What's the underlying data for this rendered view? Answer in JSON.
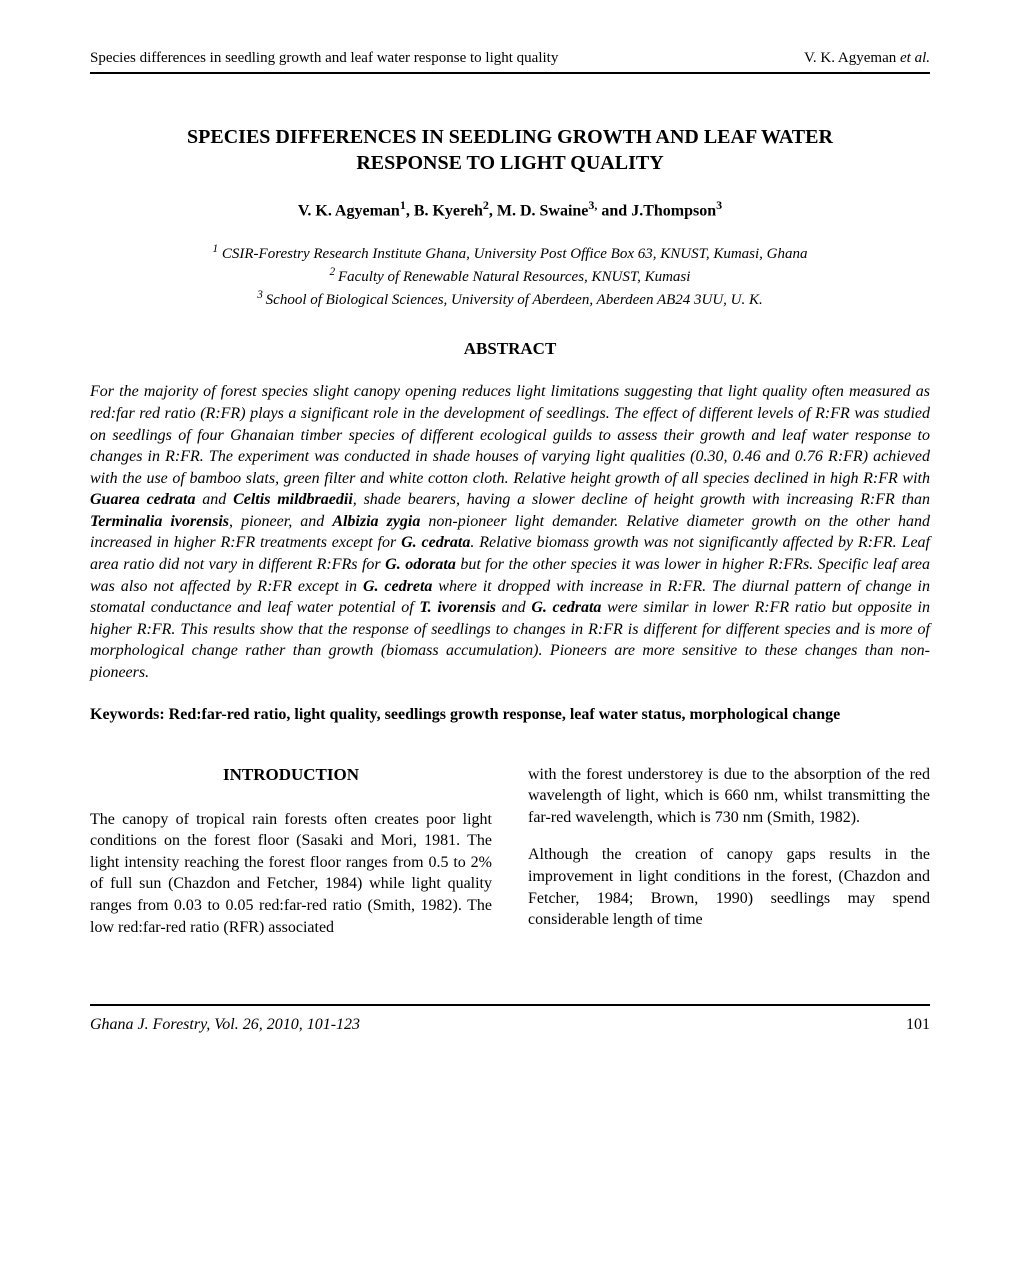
{
  "header": {
    "running_title": "Species differences in seedling growth and leaf water response to light quality",
    "author_short": "V. K. Agyeman",
    "etal": " et al."
  },
  "title_line1": "SPECIES DIFFERENCES IN SEEDLING GROWTH AND LEAF WATER",
  "title_line2": "RESPONSE TO LIGHT QUALITY",
  "authors": {
    "a1": "V. K. Agyeman",
    "s1": "1",
    "sep1": ", ",
    "a2": "B. Kyereh",
    "s2": "2",
    "sep2": ", ",
    "a3": "M. D. Swaine",
    "s3": "3,",
    "sep3": " and ",
    "a4": "J.Thompson",
    "s4": "3"
  },
  "affiliations": {
    "s1": "1",
    "t1": " CSIR-Forestry Research Institute Ghana, University Post Office Box 63, KNUST, Kumasi, Ghana",
    "s2": "2 ",
    "t2": "Faculty of Renewable Natural Resources, KNUST, Kumasi",
    "s3": "3 ",
    "t3": "School of Biological Sciences, University of Aberdeen, Aberdeen AB24 3UU, U. K."
  },
  "abstract_heading": "ABSTRACT",
  "abstract": {
    "p1a": "For the majority of forest species slight canopy opening reduces light limitations suggesting that light quality often measured as red:far red ratio (R:FR) plays a significant role in the development of seedlings. The effect of different levels of R:FR was studied on seedlings of four Ghanaian timber species of different ecological guilds to assess their growth and leaf water response to changes in R:FR. The experiment was conducted in shade houses of varying light qualities (0.30, 0.46 and 0.76 R:FR) achieved with the use of bamboo slats, green filter and white cotton cloth. Relative height growth of all species declined in high R:FR with ",
    "b1": "Guarea cedrata",
    "p1b": " and ",
    "b2": "Celtis mildbraedii",
    "p1c": ", shade bearers, having a slower decline of height growth with increasing R:FR than ",
    "b3": "Terminalia ivorensis",
    "p1d": ", pioneer, and ",
    "b4": "Albizia zygia",
    "p1e": " non-pioneer light demander. Relative diameter growth on the other hand increased in higher R:FR treatments except for ",
    "b5": "G. cedrata",
    "p1f": ". Relative biomass growth was not significantly affected by R:FR. Leaf area ratio did not vary in different R:FRs for ",
    "b6": "G. odorata",
    "p1g": " but for the other species it was lower in higher R:FRs. Specific leaf area was also not affected by R:FR except in ",
    "b7": "G. cedreta",
    "p1h": " where it dropped with increase in R:FR. The diurnal pattern of change in stomatal conductance and leaf water potential of ",
    "b8": "T. ivorensis",
    "p1i": " and ",
    "b9": "G. cedrata",
    "p1j": " were similar in lower R:FR ratio but opposite in higher R:FR. This results show that the response of seedlings to changes in R:FR is different for different species and is more of morphological change rather than growth (biomass accumulation). Pioneers are more sensitive to these changes than non-pioneers."
  },
  "keywords": "Keywords: Red:far-red ratio, light quality, seedlings growth response, leaf water status, morphological change",
  "intro_heading": "INTRODUCTION",
  "body": {
    "col1_p1": "The canopy of tropical rain forests often creates poor light conditions on the forest floor (Sasaki and Mori, 1981. The light intensity reaching the forest floor ranges from 0.5 to 2% of full sun (Chazdon and Fetcher, 1984) while light quality ranges from 0.03 to 0.05 red:far-red ratio (Smith, 1982). The low red:far-red ratio (RFR) associated",
    "col2_p1": "with the forest understorey is due to the absorption of the red wavelength of light, which is 660 nm, whilst transmitting the far-red wavelength, which is 730 nm (Smith, 1982).",
    "col2_p2": "Although the creation of canopy gaps results in the improvement in light conditions in the forest, (Chazdon and Fetcher, 1984; Brown, 1990) seedlings may spend considerable length of time"
  },
  "footer": {
    "journal": "Ghana J. Forestry, Vol. 26,  2010, 101-123",
    "page": "101"
  }
}
